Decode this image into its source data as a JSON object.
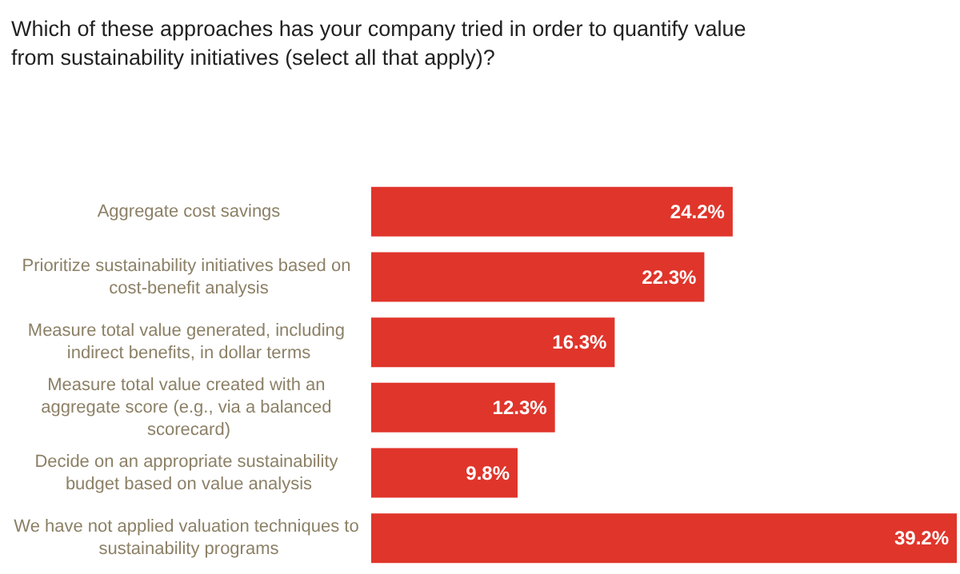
{
  "chart_data": {
    "type": "bar",
    "orientation": "horizontal",
    "title": "Which of these approaches has your company tried in order to quantify value from sustainability initiatives (select all that apply)?",
    "categories": [
      "Aggregate cost savings",
      "Prioritize sustainability initiatives based on cost-benefit analysis",
      "Measure total value generated, including indirect benefits, in dollar terms",
      "Measure total value created with an aggregate score (e.g., via a balanced scorecard)",
      "Decide on an appropriate sustainability budget based on value analysis",
      "We have not applied valuation techniques to sustainability programs"
    ],
    "values": [
      24.2,
      22.3,
      16.3,
      12.3,
      9.8,
      39.2
    ],
    "value_labels": [
      "24.2%",
      "22.3%",
      "16.3%",
      "12.3%",
      "9.8%",
      "39.2%"
    ],
    "color": "#e0352b"
  }
}
